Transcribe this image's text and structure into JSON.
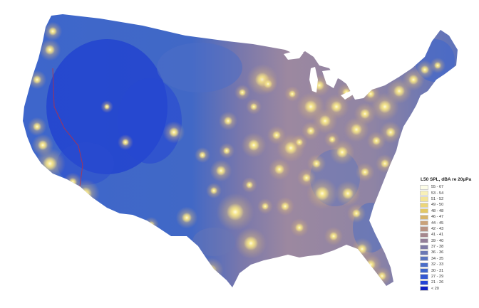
{
  "legend": {
    "title": "L50 SPL, dBA re 20µPa",
    "entries": [
      {
        "label": "55 - 67",
        "color": "#fdfde8"
      },
      {
        "label": "53 - 54",
        "color": "#f8f0b8"
      },
      {
        "label": "51 - 52",
        "color": "#f3e497"
      },
      {
        "label": "49 - 50",
        "color": "#ecd67a"
      },
      {
        "label": "48 - 48",
        "color": "#e3c866"
      },
      {
        "label": "46 - 47",
        "color": "#d8b56a"
      },
      {
        "label": "44 - 45",
        "color": "#c9a27a"
      },
      {
        "label": "42 - 43",
        "color": "#b89384"
      },
      {
        "label": "41 - 41",
        "color": "#a6888e"
      },
      {
        "label": "39 - 40",
        "color": "#937f99"
      },
      {
        "label": "37 - 38",
        "color": "#7f7ba6"
      },
      {
        "label": "36 - 36",
        "color": "#6b78b4"
      },
      {
        "label": "34 - 35",
        "color": "#5a74bf"
      },
      {
        "label": "32 - 33",
        "color": "#4c6ec7"
      },
      {
        "label": "30 - 31",
        "color": "#3f66cc"
      },
      {
        "label": "27 - 29",
        "color": "#3358d2"
      },
      {
        "label": "21 - 26",
        "color": "#2444d6"
      },
      {
        "label": "< 20",
        "color": "#1122c4"
      }
    ]
  },
  "colors": {
    "west": "#3a63cc",
    "mountain_low": "#1f3fd0",
    "plains": "#9a86a0",
    "east": "#8a80a8",
    "coast": "#4f70c6",
    "city_glow": "#f6e68a",
    "city_core": "#fffbe0",
    "state_line": "#c0303a"
  }
}
